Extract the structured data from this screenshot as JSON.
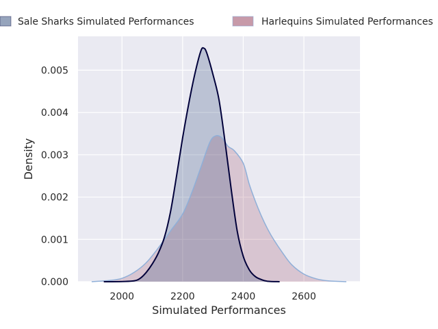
{
  "chart_data": {
    "type": "area",
    "title": "",
    "xlabel": "Simulated Performances",
    "ylabel": "Density",
    "xlim": [
      1855,
      2785
    ],
    "ylim": [
      0,
      0.0058
    ],
    "x_ticks": [
      2000,
      2200,
      2400,
      2600
    ],
    "x_tick_labels": [
      "2000",
      "2200",
      "2400",
      "2600"
    ],
    "y_ticks": [
      0,
      0.001,
      0.002,
      0.003,
      0.004,
      0.005
    ],
    "y_tick_labels": [
      "0.000",
      "0.001",
      "0.002",
      "0.003",
      "0.004",
      "0.005"
    ],
    "grid": true,
    "legend_position": "top",
    "series": [
      {
        "name": "Sale Sharks Simulated Performances",
        "fill_color": "#2e4a7a",
        "line_color": "#00003a",
        "points": [
          [
            1940,
            0
          ],
          [
            2000,
            5e-06
          ],
          [
            2040,
            2e-05
          ],
          [
            2060,
            8e-05
          ],
          [
            2080,
            0.00022
          ],
          [
            2100,
            0.00042
          ],
          [
            2120,
            0.00068
          ],
          [
            2140,
            0.00105
          ],
          [
            2160,
            0.00165
          ],
          [
            2180,
            0.0025
          ],
          [
            2200,
            0.0034
          ],
          [
            2220,
            0.0042
          ],
          [
            2240,
            0.0049
          ],
          [
            2260,
            0.00545
          ],
          [
            2270,
            0.00552
          ],
          [
            2280,
            0.0054
          ],
          [
            2300,
            0.0049
          ],
          [
            2320,
            0.0043
          ],
          [
            2340,
            0.0033
          ],
          [
            2360,
            0.0022
          ],
          [
            2380,
            0.0012
          ],
          [
            2400,
            0.0006
          ],
          [
            2420,
            0.00028
          ],
          [
            2440,
            0.00012
          ],
          [
            2460,
            5e-05
          ],
          [
            2480,
            1e-05
          ],
          [
            2520,
            0
          ]
        ]
      },
      {
        "name": "Harlequins Simulated Performances",
        "fill_color": "#a25670",
        "line_color": "#8fafd8",
        "points": [
          [
            1900,
            0
          ],
          [
            1960,
            3e-05
          ],
          [
            2000,
            8e-05
          ],
          [
            2040,
            0.00022
          ],
          [
            2080,
            0.00045
          ],
          [
            2120,
            0.0008
          ],
          [
            2160,
            0.0012
          ],
          [
            2200,
            0.0016
          ],
          [
            2230,
            0.0021
          ],
          [
            2260,
            0.0027
          ],
          [
            2290,
            0.0033
          ],
          [
            2310,
            0.00345
          ],
          [
            2330,
            0.0034
          ],
          [
            2350,
            0.0032
          ],
          [
            2370,
            0.0031
          ],
          [
            2400,
            0.0028
          ],
          [
            2420,
            0.0023
          ],
          [
            2440,
            0.0019
          ],
          [
            2460,
            0.00155
          ],
          [
            2480,
            0.00125
          ],
          [
            2500,
            0.001
          ],
          [
            2530,
            0.00068
          ],
          [
            2560,
            0.0004
          ],
          [
            2600,
            0.00018
          ],
          [
            2640,
            7e-05
          ],
          [
            2680,
            2e-05
          ],
          [
            2740,
            0
          ]
        ]
      }
    ]
  }
}
